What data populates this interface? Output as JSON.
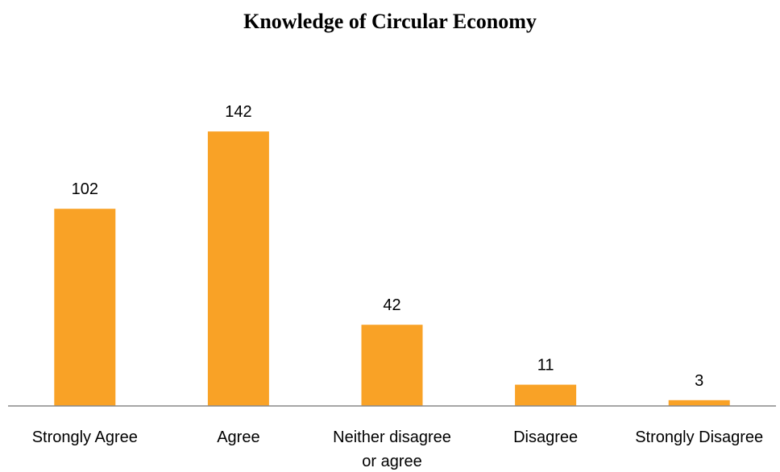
{
  "chart_data": {
    "type": "bar",
    "title": "Knowledge of Circular Economy",
    "categories": [
      "Strongly Agree",
      "Agree",
      "Neither disagree or agree",
      "Disagree",
      "Strongly Disagree"
    ],
    "category_label_lines": [
      [
        "Strongly Agree"
      ],
      [
        "Agree"
      ],
      [
        "Neither disagree",
        "or agree"
      ],
      [
        "Disagree"
      ],
      [
        "Strongly Disagree"
      ]
    ],
    "values": [
      102,
      142,
      42,
      11,
      3
    ],
    "data_labels": [
      "102",
      "142",
      "42",
      "11",
      "3"
    ],
    "ylim": [
      0,
      145
    ],
    "grid": false,
    "legend": "none",
    "bar_color": "#F9A226",
    "axis_color": "#888888"
  }
}
